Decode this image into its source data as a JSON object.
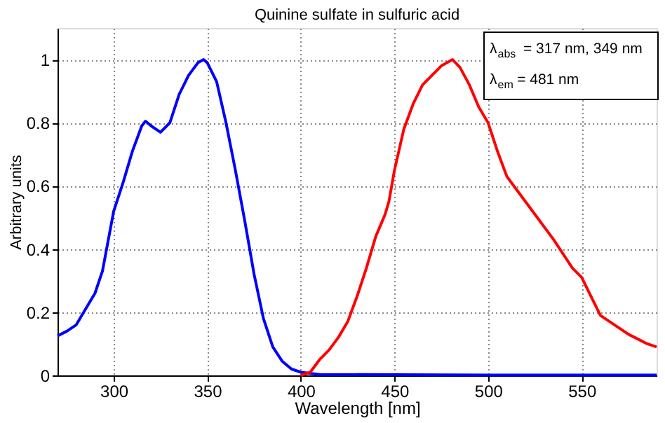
{
  "chart_data": {
    "type": "line",
    "title": "Quinine sulfate in sulfuric acid",
    "xlabel": "Wavelength [nm]",
    "ylabel": "Arbitrary units",
    "xlim": [
      270,
      590
    ],
    "xticks": [
      300,
      350,
      400,
      450,
      500,
      550
    ],
    "ylim": [
      0,
      1.1
    ],
    "yticks": [
      0,
      0.2,
      0.4,
      0.6,
      0.8,
      1
    ],
    "grid": true,
    "legend": false,
    "annotations": [
      "λ$_{abs}$ = 317 nm, 349 nm",
      "λ$_{em}$ = 481 nm"
    ],
    "series": [
      {
        "color": "#0000ff",
        "x": [
          270,
          275,
          280,
          285,
          290,
          294,
          300,
          305,
          310,
          315,
          317,
          320,
          325,
          330,
          335,
          340,
          345,
          348,
          350,
          355,
          360,
          365,
          370,
          375,
          380,
          385,
          390,
          395,
          400,
          410,
          450,
          500,
          590
        ],
        "values": [
          0.125,
          0.14,
          0.16,
          0.21,
          0.26,
          0.33,
          0.52,
          0.61,
          0.71,
          0.79,
          0.805,
          0.79,
          0.77,
          0.8,
          0.89,
          0.95,
          0.99,
          1.0,
          0.99,
          0.93,
          0.8,
          0.65,
          0.49,
          0.32,
          0.18,
          0.09,
          0.045,
          0.02,
          0.01,
          0.003,
          0.002,
          0.001,
          0.001
        ]
      },
      {
        "color": "#ff0000",
        "x": [
          400,
          405,
          410,
          415,
          420,
          425,
          430,
          435,
          440,
          445,
          447,
          450,
          455,
          460,
          465,
          470,
          475,
          481,
          485,
          490,
          495,
          500,
          505,
          510,
          515,
          520,
          525,
          530,
          535,
          540,
          545,
          550,
          555,
          560,
          565,
          570,
          575,
          580,
          585,
          590
        ],
        "values": [
          0.0,
          0.01,
          0.05,
          0.08,
          0.12,
          0.17,
          0.25,
          0.34,
          0.44,
          0.51,
          0.55,
          0.65,
          0.78,
          0.86,
          0.92,
          0.95,
          0.98,
          1.0,
          0.975,
          0.92,
          0.85,
          0.8,
          0.71,
          0.63,
          0.59,
          0.55,
          0.51,
          0.47,
          0.43,
          0.385,
          0.34,
          0.31,
          0.25,
          0.19,
          0.17,
          0.15,
          0.13,
          0.115,
          0.1,
          0.09
        ]
      }
    ]
  }
}
